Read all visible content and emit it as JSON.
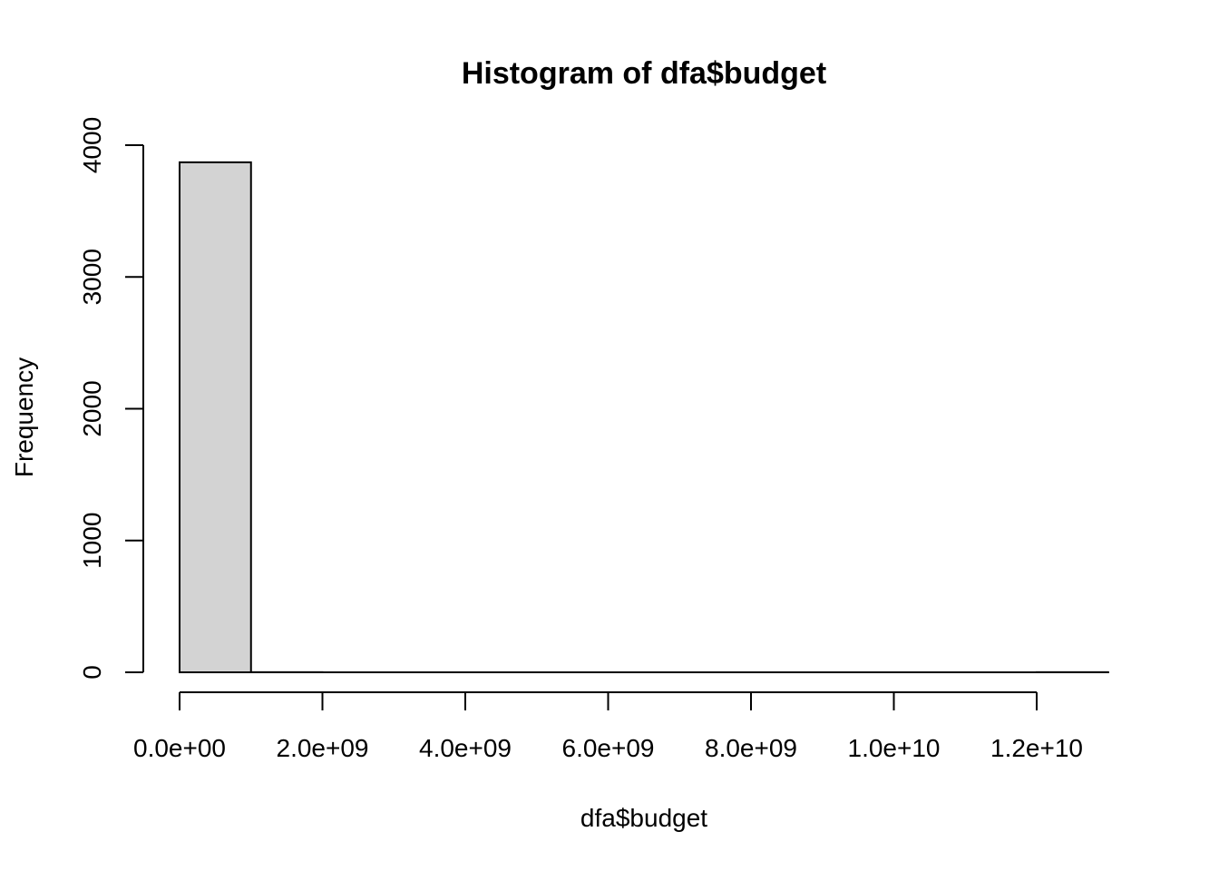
{
  "chart_data": {
    "type": "bar",
    "title": "Histogram of dfa$budget",
    "xlabel": "dfa$budget",
    "ylabel": "Frequency",
    "bin_edges": [
      0,
      1000000000,
      2000000000,
      3000000000,
      4000000000,
      5000000000,
      6000000000,
      7000000000,
      8000000000,
      9000000000,
      10000000000,
      11000000000,
      12000000000,
      13000000000
    ],
    "values": [
      3870,
      1,
      0,
      0,
      0,
      0,
      0,
      0,
      0,
      0,
      0,
      0,
      1
    ],
    "x_ticks": [
      0,
      2000000000,
      4000000000,
      6000000000,
      8000000000,
      10000000000,
      12000000000
    ],
    "x_tick_labels": [
      "0.0e+00",
      "2.0e+09",
      "4.0e+09",
      "6.0e+09",
      "8.0e+09",
      "1.0e+10",
      "1.2e+10"
    ],
    "y_ticks": [
      0,
      1000,
      2000,
      3000,
      4000
    ],
    "y_tick_labels": [
      "0",
      "1000",
      "2000",
      "3000",
      "4000"
    ],
    "xlim": [
      0,
      13000000000
    ],
    "ylim": [
      0,
      4000
    ],
    "bar_color": "#d3d3d3",
    "grid": false
  }
}
